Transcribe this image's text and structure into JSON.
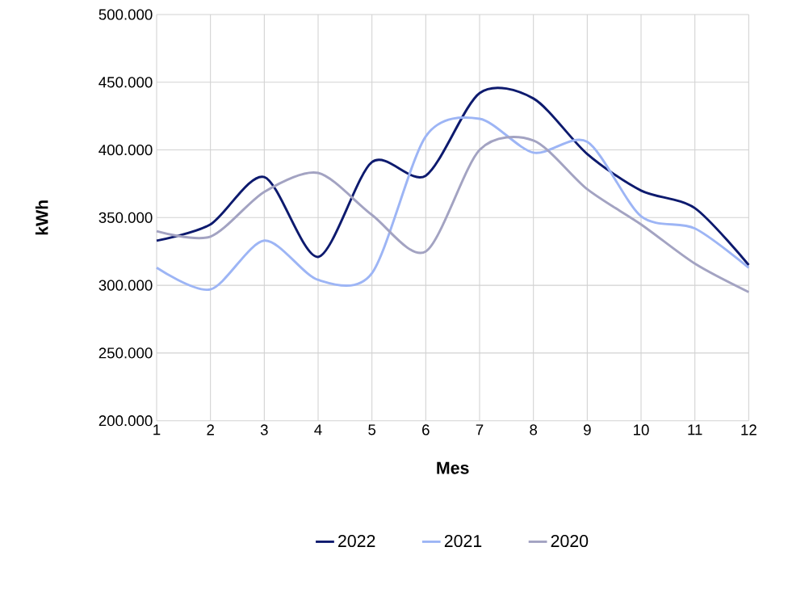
{
  "chart_data": {
    "type": "line",
    "xlabel": "Mes",
    "ylabel": "kWh",
    "x": [
      1,
      2,
      3,
      4,
      5,
      6,
      7,
      8,
      9,
      10,
      11,
      12
    ],
    "xlim": [
      1,
      12
    ],
    "xticks": [
      1,
      2,
      3,
      4,
      5,
      6,
      7,
      8,
      9,
      10,
      11,
      12
    ],
    "ylim": [
      200000,
      500000
    ],
    "yticks": [
      {
        "value": 200000,
        "label": "200.000"
      },
      {
        "value": 250000,
        "label": "250.000"
      },
      {
        "value": 300000,
        "label": "300.000"
      },
      {
        "value": 350000,
        "label": "350.000"
      },
      {
        "value": 400000,
        "label": "400.000"
      },
      {
        "value": 450000,
        "label": "450.000"
      },
      {
        "value": 500000,
        "label": "500.000"
      }
    ],
    "grid": true,
    "legend": "bottom",
    "marker": "none",
    "line_style": "solid",
    "series": [
      {
        "name": "2022",
        "color": "#0d1a6e",
        "values": [
          333000,
          345000,
          380000,
          321000,
          391000,
          381000,
          442000,
          438000,
          397000,
          370000,
          357000,
          315000
        ]
      },
      {
        "name": "2021",
        "color": "#9db5f5",
        "values": [
          313000,
          297000,
          333000,
          304000,
          309000,
          410000,
          423000,
          398000,
          406000,
          351000,
          342000,
          313000
        ]
      },
      {
        "name": "2020",
        "color": "#a3a3c2",
        "values": [
          340000,
          336000,
          369000,
          383000,
          352000,
          325000,
          400000,
          407000,
          371000,
          345000,
          316000,
          295000
        ]
      }
    ]
  }
}
